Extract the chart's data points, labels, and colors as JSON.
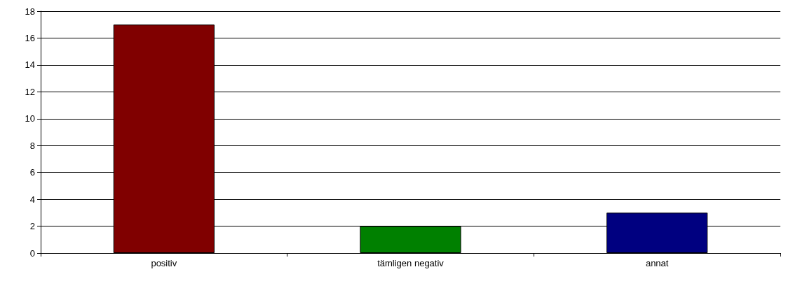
{
  "chart_data": {
    "type": "bar",
    "categories": [
      "positiv",
      "tämligen negativ",
      "annat"
    ],
    "values": [
      17,
      2,
      3
    ],
    "colors": [
      "#800000",
      "#008000",
      "#000080"
    ],
    "ylim": [
      0,
      18
    ],
    "yticks": [
      0,
      2,
      4,
      6,
      8,
      10,
      12,
      14,
      16,
      18
    ],
    "grid": "y"
  }
}
